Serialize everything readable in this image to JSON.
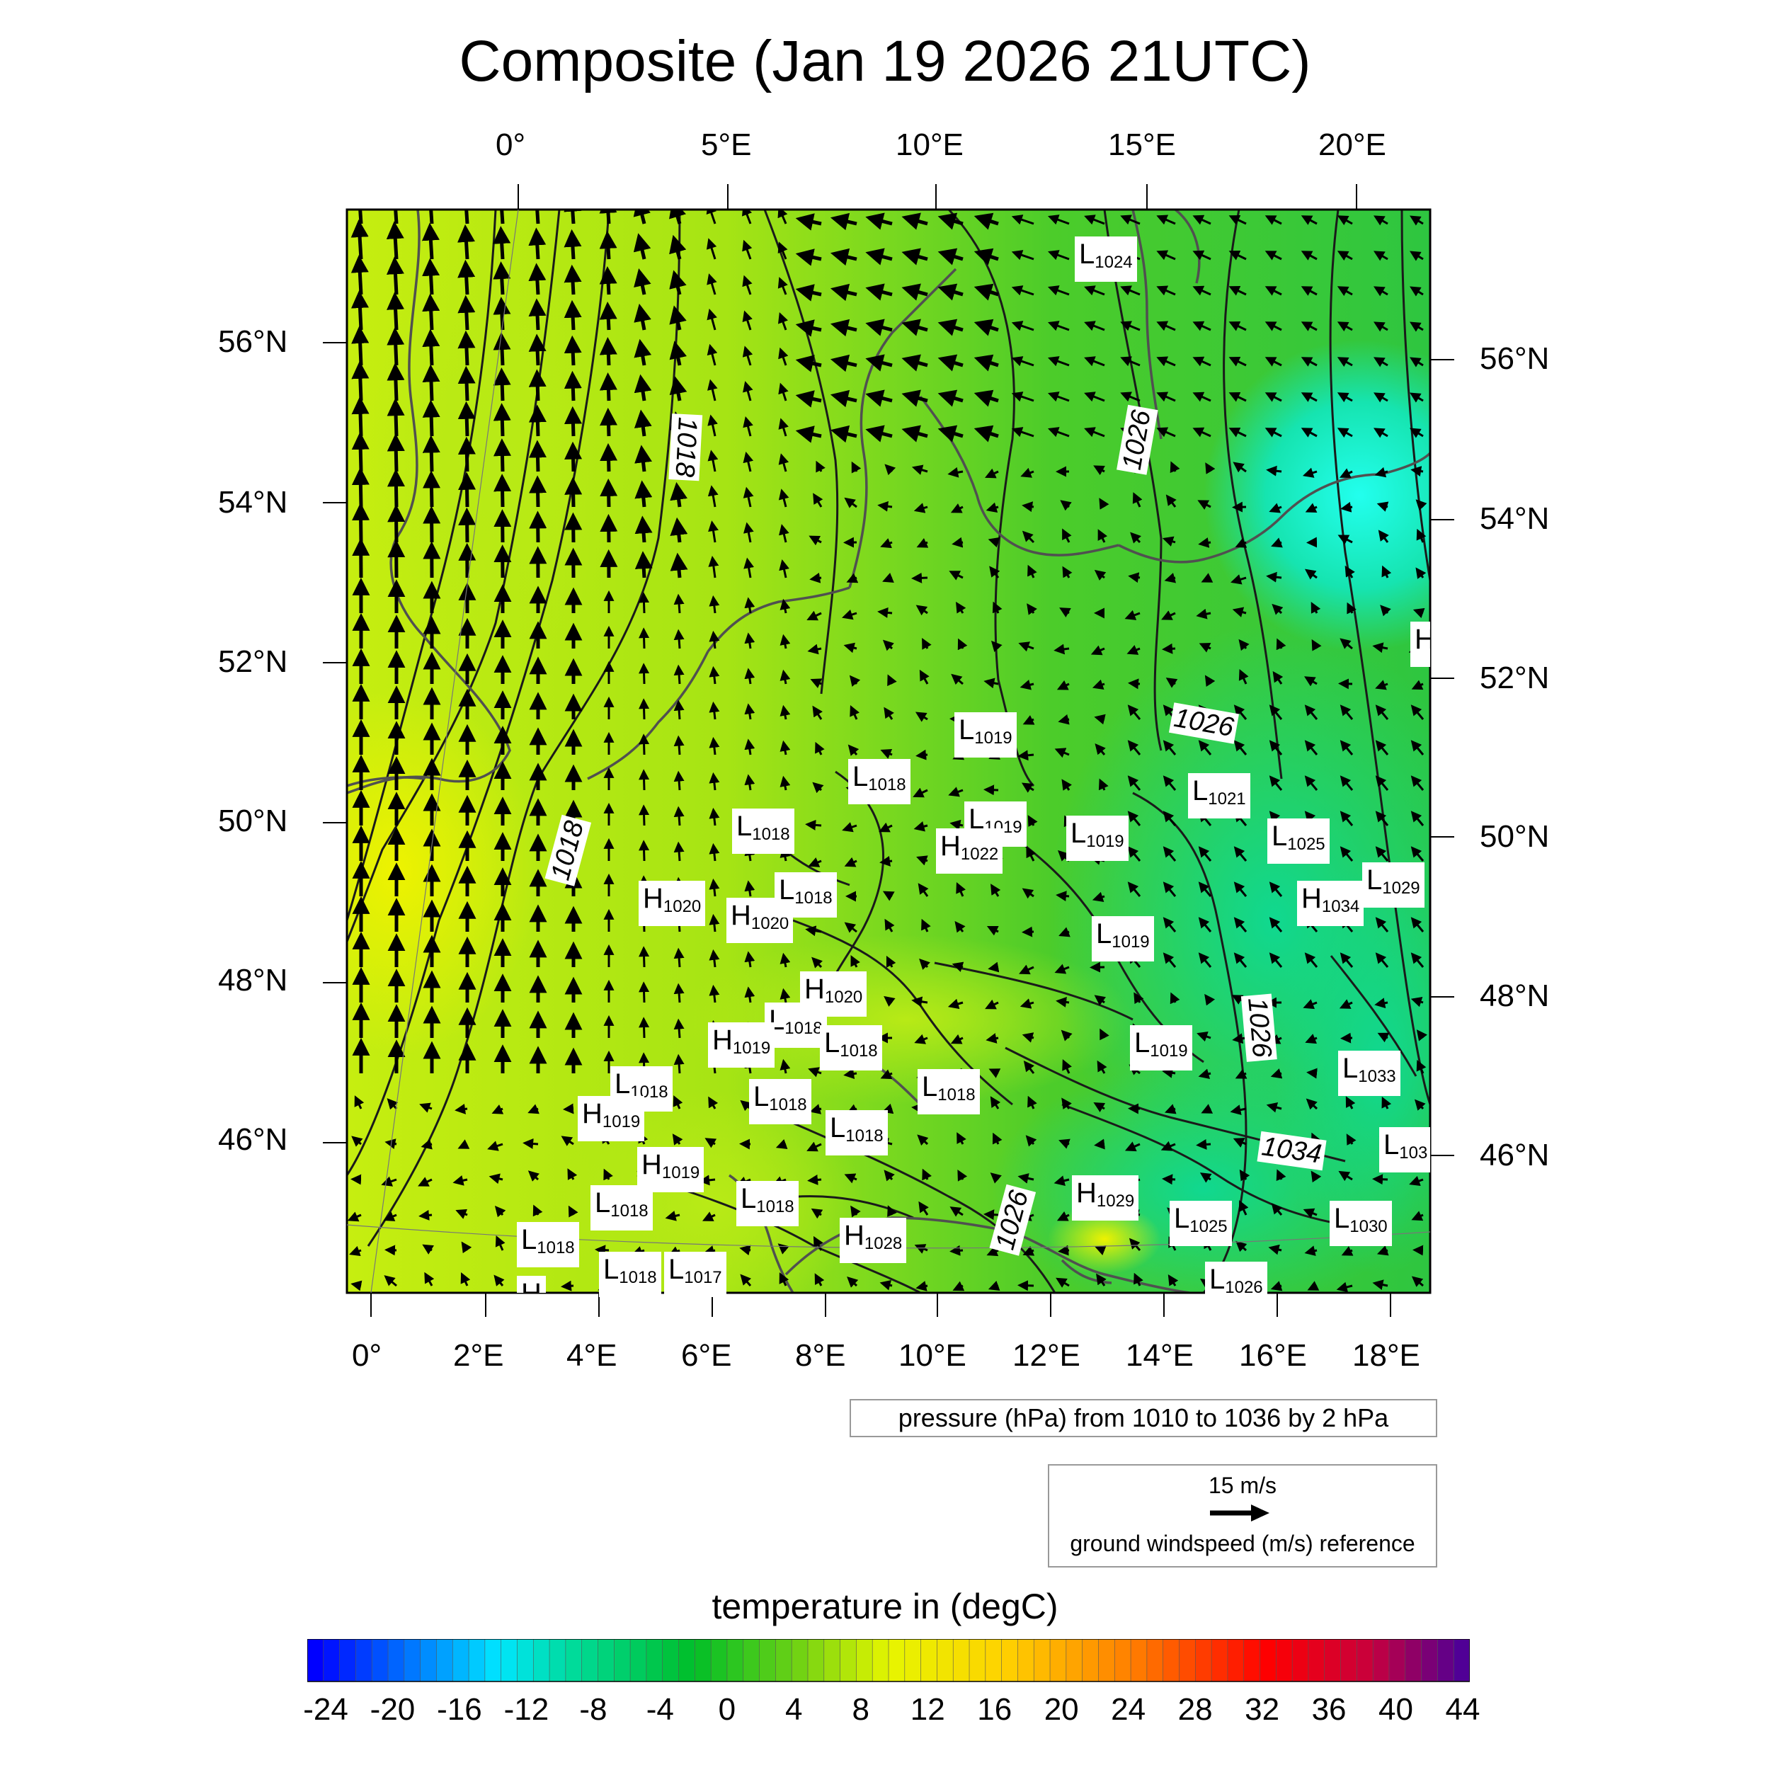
{
  "title": "Composite (Jan 19 2026 21UTC)",
  "top_lon_labels": [
    "0°",
    "5°E",
    "10°E",
    "15°E",
    "20°E"
  ],
  "bottom_lon_labels": [
    "0°",
    "2°E",
    "4°E",
    "6°E",
    "8°E",
    "10°E",
    "12°E",
    "14°E",
    "16°E",
    "18°E"
  ],
  "left_lat_labels": [
    "56°N",
    "54°N",
    "52°N",
    "50°N",
    "48°N",
    "46°N"
  ],
  "right_lat_labels": [
    "56°N",
    "54°N",
    "52°N",
    "50°N",
    "48°N",
    "46°N"
  ],
  "pressure_note": "pressure (hPa) from 1010 to 1036 by 2 hPa",
  "wind_reference": {
    "speed": "15 m/s",
    "label": "ground windspeed (m/s) reference"
  },
  "colorbar": {
    "title": "temperature in (degC)",
    "ticks": [
      "-24",
      "-20",
      "-16",
      "-12",
      "-8",
      "-4",
      "0",
      "4",
      "8",
      "12",
      "16",
      "20",
      "24",
      "28",
      "32",
      "36",
      "40",
      "44"
    ],
    "range": [
      -24,
      44
    ],
    "colors": {
      "cold": "#0000ff",
      "cool": "#00ffff",
      "neutral": "#00c000",
      "mild": "#c8f000",
      "warm": "#ffff00",
      "hot": "#ff8000",
      "very_hot": "#ff0000",
      "extreme": "#500090"
    }
  },
  "pressure_centers": [
    {
      "type": "L",
      "value": "1024"
    },
    {
      "type": "L",
      "value": "1019"
    },
    {
      "type": "L",
      "value": "1018"
    },
    {
      "type": "L",
      "value": "1021"
    },
    {
      "type": "L",
      "value": "1018"
    },
    {
      "type": "L",
      "value": "1019"
    },
    {
      "type": "H",
      "value": "1022"
    },
    {
      "type": "L",
      "value": "1019"
    },
    {
      "type": "L",
      "value": "1025"
    },
    {
      "type": "L",
      "value": "1029"
    },
    {
      "type": "H",
      "value": "1034"
    },
    {
      "type": "H",
      "value": "1020"
    },
    {
      "type": "H",
      "value": "1020"
    },
    {
      "type": "L",
      "value": "1018"
    },
    {
      "type": "L",
      "value": "1019"
    },
    {
      "type": "H",
      "value": "1020"
    },
    {
      "type": "L",
      "value": "1018"
    },
    {
      "type": "H",
      "value": "1019"
    },
    {
      "type": "L",
      "value": "1018"
    },
    {
      "type": "L",
      "value": "1019"
    },
    {
      "type": "L",
      "value": "1018"
    },
    {
      "type": "L",
      "value": "1018"
    },
    {
      "type": "H",
      "value": "1019"
    },
    {
      "type": "L",
      "value": "1018"
    },
    {
      "type": "L",
      "value": "1018"
    },
    {
      "type": "L",
      "value": "1033"
    },
    {
      "type": "H",
      "value": "1019"
    },
    {
      "type": "L",
      "value": "1018"
    },
    {
      "type": "L",
      "value": "1018"
    },
    {
      "type": "H",
      "value": "1029"
    },
    {
      "type": "L",
      "value": "1030"
    },
    {
      "type": "L",
      "value": "1025"
    },
    {
      "type": "H",
      "value": "1028"
    },
    {
      "type": "L",
      "value": "1018"
    },
    {
      "type": "L",
      "value": "1018"
    },
    {
      "type": "L",
      "value": "1017"
    },
    {
      "type": "L",
      "value": "1026"
    },
    {
      "type": "L",
      "value": "103"
    },
    {
      "type": "H",
      "value": ""
    },
    {
      "type": "H",
      "value": ""
    }
  ],
  "contour_labels": [
    "1018",
    "1018",
    "1026",
    "1026",
    "1026",
    "1034",
    "1026"
  ]
}
